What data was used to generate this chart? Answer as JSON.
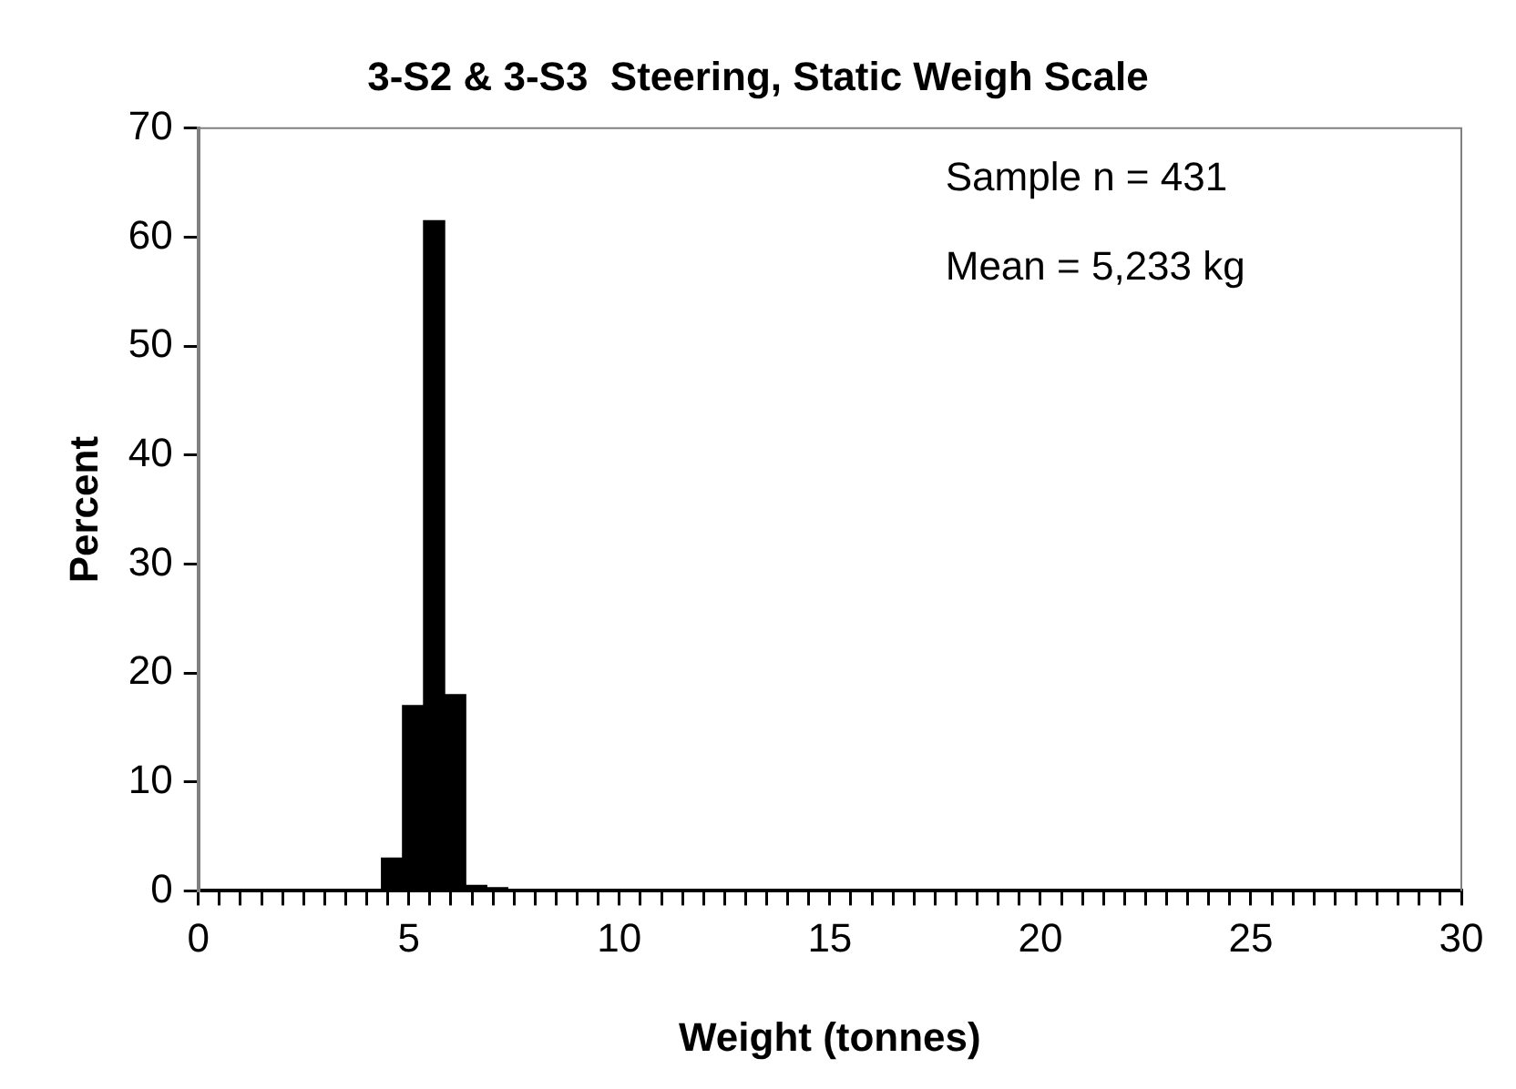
{
  "chart_data": {
    "type": "histogram",
    "title": "3-S2 & 3-S3  Steering, Static Weigh Scale",
    "xlabel": "Weight (tonnes)",
    "ylabel": "Percent",
    "bins": [
      4.35,
      4.85,
      5.35,
      5.85,
      6.35,
      6.85,
      7.35
    ],
    "values": [
      3,
      17,
      61.5,
      18,
      0.5,
      0.3
    ],
    "color": "#000000",
    "xlim": [
      0,
      30
    ],
    "xticks": [
      0,
      {
        "value": 0.5,
        "label": null
      },
      {
        "value": 1,
        "label": null
      },
      {
        "value": 1.5,
        "label": null
      },
      {
        "value": 2,
        "label": null
      },
      {
        "value": 2.5,
        "label": null
      },
      {
        "value": 3,
        "label": null
      },
      {
        "value": 3.5,
        "label": null
      },
      {
        "value": 4,
        "label": null
      },
      {
        "value": 4.5,
        "label": null
      },
      5,
      {
        "value": 5.5,
        "label": null
      },
      {
        "value": 6,
        "label": null
      },
      {
        "value": 6.5,
        "label": null
      },
      {
        "value": 7,
        "label": null
      },
      {
        "value": 7.5,
        "label": null
      },
      {
        "value": 8,
        "label": null
      },
      {
        "value": 8.5,
        "label": null
      },
      {
        "value": 9,
        "label": null
      },
      {
        "value": 9.5,
        "label": null
      },
      10,
      {
        "value": 10.5,
        "label": null
      },
      {
        "value": 11,
        "label": null
      },
      {
        "value": 11.5,
        "label": null
      },
      {
        "value": 12,
        "label": null
      },
      {
        "value": 12.5,
        "label": null
      },
      {
        "value": 13,
        "label": null
      },
      {
        "value": 13.5,
        "label": null
      },
      {
        "value": 14,
        "label": null
      },
      {
        "value": 14.5,
        "label": null
      },
      15,
      {
        "value": 15.5,
        "label": null
      },
      {
        "value": 16,
        "label": null
      },
      {
        "value": 16.5,
        "label": null
      },
      {
        "value": 17,
        "label": null
      },
      {
        "value": 17.5,
        "label": null
      },
      {
        "value": 18,
        "label": null
      },
      {
        "value": 18.5,
        "label": null
      },
      {
        "value": 19,
        "label": null
      },
      {
        "value": 19.5,
        "label": null
      },
      20,
      {
        "value": 20.5,
        "label": null
      },
      {
        "value": 21,
        "label": null
      },
      {
        "value": 21.5,
        "label": null
      },
      {
        "value": 22,
        "label": null
      },
      {
        "value": 22.5,
        "label": null
      },
      {
        "value": 23,
        "label": null
      },
      {
        "value": 23.5,
        "label": null
      },
      {
        "value": 24,
        "label": null
      },
      {
        "value": 24.5,
        "label": null
      },
      25,
      {
        "value": 25.5,
        "label": null
      },
      {
        "value": 26,
        "label": null
      },
      {
        "value": 26.5,
        "label": null
      },
      {
        "value": 27,
        "label": null
      },
      {
        "value": 27.5,
        "label": null
      },
      {
        "value": 28,
        "label": null
      },
      {
        "value": 28.5,
        "label": null
      },
      {
        "value": 29,
        "label": null
      },
      {
        "value": 29.5,
        "label": null
      },
      30
    ],
    "ylim": [
      0,
      70
    ],
    "yticks": [
      0,
      10,
      20,
      30,
      40,
      50,
      60,
      70
    ],
    "grid": false,
    "legend": false,
    "annotations": [
      "Sample n = 431",
      "Mean = 5,233 kg"
    ]
  }
}
